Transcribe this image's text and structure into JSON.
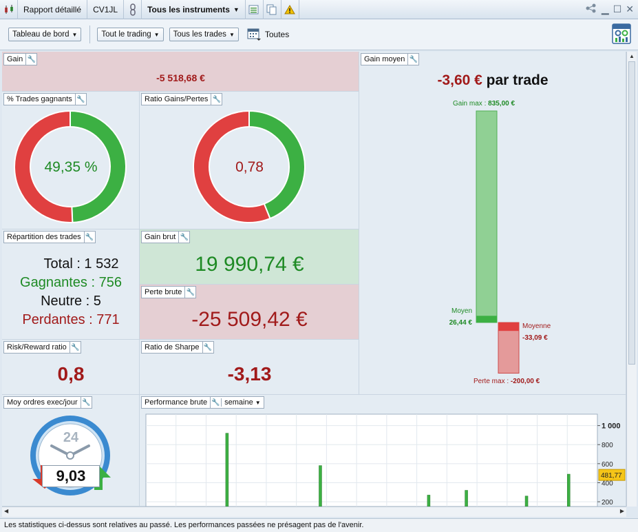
{
  "titlebar": {
    "report": "Rapport détaillé",
    "account": "CV1JL",
    "instruments": "Tous les instruments"
  },
  "toolbar": {
    "dashboard": "Tableau de bord",
    "trading": "Tout le trading",
    "trades": "Tous les trades",
    "period": "Toutes"
  },
  "gain": {
    "title": "Gain",
    "value": "-5 518,68 €"
  },
  "gain_moyen": {
    "title": "Gain moyen",
    "value": "-3,60 €",
    "suffix": "par trade",
    "max_label": "Gain max :",
    "max_value": "835,00 €",
    "moyen_label": "Moyen",
    "moyen_value": "26,44 €",
    "moyenne_label": "Moyenne",
    "moyenne_value": "-33,09 €",
    "perte_label": "Perte max :",
    "perte_value": "-200,00 €",
    "gain_max_num": 835,
    "gain_avg_num": 26.44,
    "loss_avg_num": -33.09,
    "loss_max_num": -200
  },
  "pct_trades": {
    "title": "% Trades gagnants",
    "value": "49,35 %",
    "win_fraction": 0.4935
  },
  "ratio": {
    "title": "Ratio Gains/Pertes",
    "value": "0,78",
    "win_fraction": 0.4387
  },
  "repartition": {
    "title": "Répartition des trades",
    "total": "Total : 1 532",
    "gagnantes": "Gagnantes : 756",
    "neutre": "Neutre : 5",
    "perdantes": "Perdantes : 771"
  },
  "gain_brut": {
    "title": "Gain brut",
    "value": "19 990,74 €"
  },
  "perte_brute": {
    "title": "Perte brute",
    "value": "-25 509,42 €"
  },
  "risk_reward": {
    "title": "Risk/Reward ratio",
    "value": "0,8"
  },
  "sharpe": {
    "title": "Ratio de Sharpe",
    "value": "-3,13"
  },
  "moy_ordres": {
    "title": "Moy ordres exec/jour",
    "clock_label": "24",
    "value": "9,03"
  },
  "performance": {
    "title": "Performance brute",
    "period": "semaine"
  },
  "chart_data": {
    "type": "bar",
    "ytick_labels": [
      "1 000",
      "800",
      "600",
      "400",
      "200"
    ],
    "yticks": [
      1000,
      800,
      600,
      400,
      200
    ],
    "ylim": [
      150,
      1120
    ],
    "marker_value": 481.77,
    "marker_label": "481,77",
    "values": [
      920,
      580,
      270,
      320,
      260,
      490
    ],
    "slots": [
      5.3,
      11.5,
      18.7,
      21.2,
      25.2,
      28.0
    ],
    "n_slots": 30
  },
  "status_text": "Les statistiques ci-dessus sont relatives au passé. Les performances passées ne présagent pas de l'avenir.",
  "colors": {
    "green": "#3cb043",
    "red": "#e04040",
    "dark_red": "#a11a1a",
    "dark_green": "#1e8a24"
  }
}
